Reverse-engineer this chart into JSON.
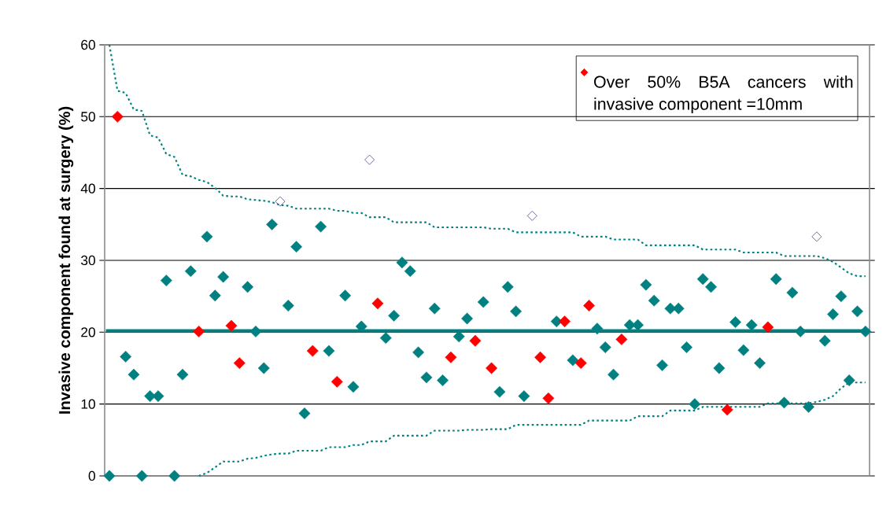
{
  "chart_data": {
    "type": "scatter",
    "ylabel": "Invasive component found at surgery (%)",
    "categories": [
      null,
      null,
      null,
      null,
      null,
      null,
      null,
      null,
      null,
      null,
      null,
      null,
      null,
      null,
      null,
      null,
      null,
      null,
      null,
      null,
      null,
      null,
      null,
      null,
      null,
      null,
      null,
      null,
      null,
      null,
      null,
      null,
      null,
      null,
      null,
      null,
      null,
      null,
      null,
      null,
      null,
      null,
      null,
      null,
      null,
      null,
      null,
      null,
      null,
      null,
      null,
      null,
      null,
      null,
      null,
      null,
      null,
      null,
      null,
      null,
      null,
      null,
      null,
      null,
      null,
      null,
      null,
      null,
      null,
      null,
      null,
      null,
      null,
      null,
      null,
      null,
      null,
      null,
      null,
      null,
      null,
      null,
      null,
      null,
      null,
      null,
      null,
      null,
      null,
      null,
      null,
      null,
      null,
      null
    ],
    "ylim": [
      0,
      60
    ],
    "yticks": [
      0,
      10,
      20,
      30,
      40,
      50,
      60
    ],
    "grid": "y",
    "legend": "top right",
    "marker": "diamond",
    "ref_lines": [
      {
        "axis": "y",
        "value": 20.2,
        "color": "#008080"
      }
    ],
    "series": [
      {
        "color": "#008080",
        "values": [
          0,
          null,
          16.6,
          14.1,
          0,
          11.1,
          11.1,
          27.2,
          0,
          14.1,
          28.5,
          null,
          33.3,
          25.1,
          27.7,
          null,
          null,
          26.3,
          20.1,
          15.0,
          35.0,
          null,
          23.7,
          31.9,
          8.7,
          null,
          34.7,
          17.4,
          null,
          25.1,
          12.4,
          20.8,
          null,
          null,
          19.2,
          22.3,
          29.7,
          28.5,
          17.2,
          13.7,
          23.3,
          13.3,
          null,
          19.4,
          21.9,
          null,
          24.2,
          null,
          11.7,
          26.3,
          22.9,
          11.1,
          null,
          null,
          null,
          21.5,
          null,
          16.1,
          null,
          null,
          20.5,
          17.9,
          14.1,
          null,
          21.0,
          21.0,
          26.6,
          24.4,
          15.4,
          23.3,
          23.3,
          17.9,
          10.0,
          27.4,
          26.3,
          15.0,
          null,
          21.4,
          17.5,
          21.0,
          15.7,
          null,
          27.4,
          10.2,
          25.5,
          20.1,
          9.6,
          null,
          18.8,
          22.5,
          25.0,
          13.3,
          22.9,
          20.1
        ]
      },
      {
        "name": "Over 50% B5A cancers with invasive component =10mm",
        "color": "#ff0000",
        "values": [
          null,
          50,
          null,
          null,
          null,
          null,
          null,
          null,
          null,
          null,
          null,
          20.1,
          null,
          null,
          null,
          20.9,
          15.7,
          null,
          null,
          null,
          null,
          null,
          null,
          null,
          null,
          17.4,
          null,
          null,
          13.1,
          null,
          null,
          null,
          null,
          24.0,
          null,
          null,
          null,
          null,
          null,
          null,
          null,
          null,
          16.5,
          null,
          null,
          18.8,
          null,
          15.0,
          null,
          null,
          null,
          null,
          null,
          16.5,
          10.8,
          null,
          21.5,
          null,
          15.7,
          23.7,
          null,
          null,
          null,
          19.0,
          null,
          null,
          null,
          null,
          null,
          null,
          null,
          null,
          null,
          null,
          null,
          null,
          9.2,
          null,
          null,
          null,
          null,
          20.7,
          null,
          null,
          null,
          null,
          null,
          null,
          null,
          null,
          null,
          null,
          null,
          null
        ]
      },
      {
        "color": "#6f5fa0",
        "values": [
          null,
          null,
          null,
          null,
          null,
          null,
          null,
          null,
          null,
          null,
          null,
          null,
          null,
          null,
          null,
          null,
          null,
          null,
          null,
          null,
          null,
          38.2,
          null,
          null,
          null,
          null,
          null,
          null,
          null,
          null,
          null,
          null,
          44.0,
          null,
          null,
          null,
          null,
          null,
          null,
          null,
          null,
          null,
          null,
          null,
          null,
          null,
          null,
          null,
          null,
          null,
          null,
          null,
          36.2,
          null,
          null,
          null,
          null,
          null,
          null,
          null,
          null,
          null,
          null,
          null,
          null,
          null,
          null,
          null,
          null,
          null,
          null,
          null,
          null,
          null,
          null,
          null,
          null,
          null,
          null,
          null,
          null,
          null,
          null,
          null,
          null,
          null,
          null,
          33.3,
          null,
          null,
          null,
          null,
          null,
          null
        ]
      },
      {
        "type": "line",
        "line_style": "dotted",
        "marker": "none",
        "color": "#008080",
        "values": [
          60,
          53.6,
          53.3,
          51.0,
          50.8,
          47.4,
          47.1,
          44.8,
          44.4,
          41.9,
          41.7,
          41.2,
          40.9,
          40.1,
          39.0,
          38.9,
          38.9,
          38.5,
          38.4,
          38.3,
          38.1,
          37.7,
          37.6,
          37.2,
          37.2,
          37.2,
          37.2,
          37.2,
          36.9,
          36.9,
          36.6,
          36.6,
          36.0,
          36.0,
          36.0,
          35.3,
          35.3,
          35.3,
          35.3,
          35.3,
          34.6,
          34.6,
          34.6,
          34.6,
          34.6,
          34.6,
          34.6,
          34.4,
          34.4,
          34.4,
          33.9,
          33.9,
          33.9,
          33.9,
          33.9,
          33.9,
          33.9,
          33.9,
          33.3,
          33.3,
          33.3,
          33.3,
          32.9,
          32.9,
          32.9,
          32.9,
          32.1,
          32.1,
          32.1,
          32.1,
          32.1,
          32.1,
          32.1,
          31.5,
          31.5,
          31.5,
          31.5,
          31.5,
          31.1,
          31.1,
          31.1,
          31.1,
          31.1,
          30.6,
          30.6,
          30.6,
          30.6,
          30.6,
          30.3,
          29.8,
          29.0,
          28.2,
          27.8,
          27.8
        ]
      },
      {
        "type": "line",
        "line_style": "dotted",
        "marker": "none",
        "color": "#008080",
        "values": [
          null,
          null,
          null,
          null,
          null,
          null,
          null,
          null,
          null,
          null,
          null,
          0,
          0.4,
          1.2,
          2.0,
          2.0,
          2.0,
          2.4,
          2.5,
          2.8,
          3.0,
          3.1,
          3.1,
          3.5,
          3.5,
          3.5,
          3.5,
          4.0,
          4.0,
          4.0,
          4.3,
          4.3,
          4.8,
          4.8,
          4.8,
          5.6,
          5.6,
          5.6,
          5.6,
          5.6,
          6.3,
          6.3,
          6.3,
          6.3,
          6.4,
          6.4,
          6.4,
          6.5,
          6.5,
          6.5,
          7.1,
          7.1,
          7.1,
          7.1,
          7.1,
          7.1,
          7.1,
          7.1,
          7.1,
          7.7,
          7.7,
          7.7,
          7.7,
          7.7,
          7.7,
          8.3,
          8.3,
          8.3,
          8.3,
          9.1,
          9.1,
          9.1,
          9.1,
          9.6,
          9.6,
          9.6,
          9.6,
          9.6,
          9.6,
          9.6,
          9.6,
          10.1,
          10.1,
          10.1,
          10.1,
          10.1,
          10.1,
          10.3,
          10.6,
          11.1,
          12.2,
          13.0,
          13.0,
          13.0
        ]
      }
    ]
  }
}
